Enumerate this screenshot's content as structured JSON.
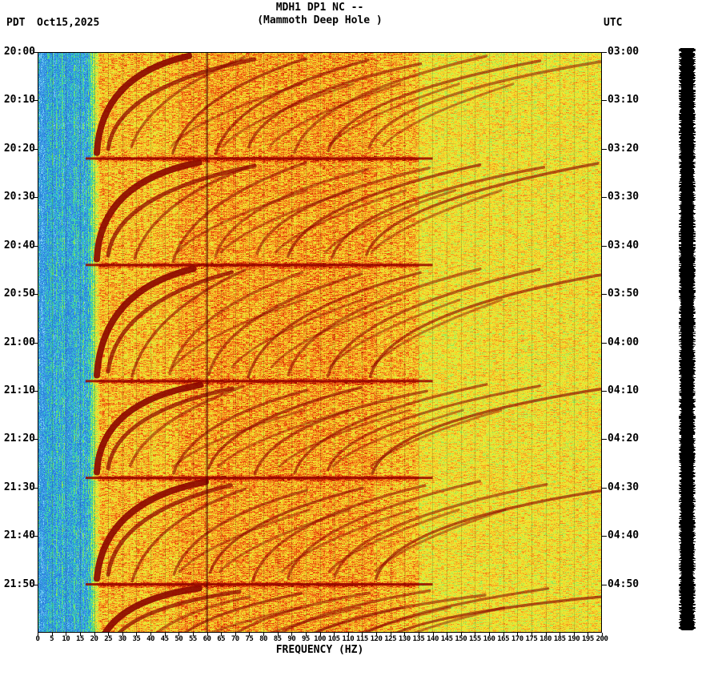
{
  "header": {
    "timezone_left": "PDT",
    "date": "Oct15,2025",
    "title_line1": "MDH1 DP1 NC --",
    "title_line2": "(Mammoth Deep Hole )",
    "timezone_right": "UTC"
  },
  "axes": {
    "left_time_labels": [
      "20:00",
      "20:10",
      "20:20",
      "20:30",
      "20:40",
      "20:50",
      "21:00",
      "21:10",
      "21:20",
      "21:30",
      "21:40",
      "21:50"
    ],
    "right_time_labels": [
      "03:00",
      "03:10",
      "03:20",
      "03:30",
      "03:40",
      "03:50",
      "04:00",
      "04:10",
      "04:20",
      "04:30",
      "04:40",
      "04:50"
    ],
    "freq_tick_labels": [
      "0",
      "5",
      "10",
      "15",
      "20",
      "25",
      "30",
      "35",
      "40",
      "45",
      "50",
      "55",
      "60",
      "65",
      "70",
      "75",
      "80",
      "85",
      "90",
      "95",
      "100",
      "105",
      "110",
      "115",
      "120",
      "125",
      "130",
      "135",
      "140",
      "145",
      "150",
      "155",
      "160",
      "165",
      "170",
      "175",
      "180",
      "185",
      "190",
      "195",
      "200"
    ],
    "xlabel": "FREQUENCY (HZ)"
  },
  "chart_data": {
    "type": "heatmap",
    "subtype": "seismic-spectrogram",
    "title": "MDH1 DP1 NC -- (Mammoth Deep Hole )",
    "station": "MDH1",
    "channel": "DP1",
    "network": "NC",
    "site_name": "Mammoth Deep Hole",
    "date": "Oct15,2025",
    "xlabel": "FREQUENCY (HZ)",
    "x_range_hz": [
      0,
      200
    ],
    "x_tick_step_hz": 5,
    "y_axis_left": {
      "timezone": "PDT",
      "start": "20:00",
      "end": "22:00",
      "tick_step_min": 10
    },
    "y_axis_right": {
      "timezone": "UTC",
      "start": "03:00",
      "end": "05:00",
      "tick_step_min": 10
    },
    "time_span_min": 120,
    "grid": "thin vertical gridlines every 5 Hz over the spectrogram",
    "legend": "none",
    "colormap": {
      "description": "low power white/cyan/blue -> green -> yellow -> orange -> red -> dark red at highest power",
      "stops": [
        {
          "p": 0.0,
          "hex": "#ffffff"
        },
        {
          "p": 0.1,
          "hex": "#aee8f0"
        },
        {
          "p": 0.2,
          "hex": "#55bbee"
        },
        {
          "p": 0.3,
          "hex": "#2878dd"
        },
        {
          "p": 0.38,
          "hex": "#33cccc"
        },
        {
          "p": 0.46,
          "hex": "#66dd66"
        },
        {
          "p": 0.54,
          "hex": "#ccee44"
        },
        {
          "p": 0.62,
          "hex": "#f5e62e"
        },
        {
          "p": 0.72,
          "hex": "#f5a623"
        },
        {
          "p": 0.82,
          "hex": "#ee5511"
        },
        {
          "p": 0.92,
          "hex": "#cc2200"
        },
        {
          "p": 1.0,
          "hex": "#7a0000"
        }
      ]
    },
    "features": {
      "quiet_band_hz": [
        0,
        20
      ],
      "quiet_band_color": "blue/cyan vertical speckle, lighter near 0-3 Hz",
      "energetic_band_hz": [
        20,
        135
      ],
      "energetic_band_color": "yellow/orange/red field crossed by dark-red gliding harmonic arcs",
      "upper_band_hz": [
        135,
        200
      ],
      "upper_band_color": "orange/yellow horizontal speckle fading to the right",
      "powerline_line_hz": 60,
      "event_times_min": [
        22,
        44,
        68,
        88,
        110
      ],
      "event_line_band_hz": [
        17,
        140
      ],
      "description": "Repeating blocks (~20-24 min) of curved dark-red harmonic arcs sweeping from ~20 Hz up past 130 Hz, with dark broadband lines at block boundaries; pattern typical of repeating tremor/drilling signal"
    },
    "side_trace": {
      "position": "right",
      "color": "#000000",
      "description": "clipped (solid black) amplitude trace column alongside the spectrogram"
    }
  }
}
